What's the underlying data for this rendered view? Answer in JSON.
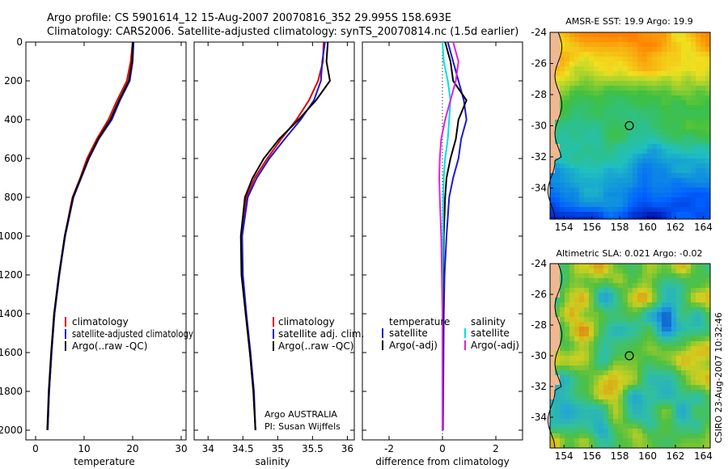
{
  "header": {
    "line1": "Argo profile: CS 5901614_12 15-Aug-2007 20070816_352 29.995S 158.693E",
    "line2": "Climatology: CARS2006. Satellite-adjusted climatology: synTS_20070814.nc (1.5d earlier)"
  },
  "credit": "CSIRO 23-Aug-2007 10:32:46",
  "colors": {
    "climatology": "#e00000",
    "satellite": "#1a1ad0",
    "argo": "#000000",
    "satellite_diff": "#00e0e0",
    "argo_diff": "#e020e0"
  },
  "chart_data": [
    {
      "type": "line",
      "xlabel": "temperature",
      "ylabel": "",
      "xlim": [
        -2,
        31
      ],
      "ylim": [
        2050,
        0
      ],
      "xticks": [
        "0",
        "10",
        "20",
        "30"
      ],
      "yticks": [
        "0",
        "200",
        "400",
        "600",
        "800",
        "1000",
        "1200",
        "1400",
        "1600",
        "1800",
        "2000"
      ],
      "legend": [
        "climatology",
        "satellite-adjusted climatology",
        "Argo(..raw -QC)"
      ],
      "series": [
        {
          "name": "climatology",
          "color": "red",
          "x": [
            20.0,
            19.6,
            18.8,
            16.8,
            15.0,
            12.6,
            10.6,
            9.2,
            7.6,
            6.0,
            4.9,
            3.9,
            3.3,
            2.8,
            2.5
          ],
          "y": [
            0,
            100,
            200,
            300,
            400,
            500,
            600,
            700,
            800,
            1000,
            1200,
            1400,
            1600,
            1800,
            2000
          ]
        },
        {
          "name": "satellite-adjusted climatology",
          "color": "blue",
          "x": [
            20.2,
            20.0,
            19.4,
            17.4,
            15.7,
            13.0,
            11.0,
            9.4,
            7.8,
            6.1,
            4.9,
            3.9,
            3.3,
            2.8,
            2.5
          ],
          "y": [
            0,
            100,
            200,
            300,
            400,
            500,
            600,
            700,
            800,
            1000,
            1200,
            1400,
            1600,
            1800,
            2000
          ]
        },
        {
          "name": "Argo(..raw -QC)",
          "color": "black",
          "x": [
            20.0,
            19.9,
            19.2,
            17.2,
            15.4,
            12.9,
            10.9,
            9.3,
            7.7,
            6.0,
            4.8,
            3.8,
            3.2,
            2.7,
            2.4
          ],
          "y": [
            0,
            100,
            200,
            300,
            400,
            500,
            600,
            700,
            800,
            1000,
            1200,
            1400,
            1600,
            1800,
            2000
          ]
        }
      ]
    },
    {
      "type": "line",
      "xlabel": "salinity",
      "xlim": [
        33.8,
        36.1
      ],
      "ylim": [
        2050,
        0
      ],
      "xticks": [
        "34",
        "34.5",
        "35",
        "35.5",
        "36"
      ],
      "legend": [
        "climatology",
        "satellite adj. clim.",
        "Argo(..raw -QC)"
      ],
      "annotation": [
        "Argo AUSTRALIA",
        "PI: Susan Wijffels"
      ],
      "series": [
        {
          "name": "climatology",
          "color": "red",
          "x": [
            35.66,
            35.65,
            35.58,
            35.45,
            35.27,
            35.05,
            34.85,
            34.67,
            34.55,
            34.48,
            34.49,
            34.54,
            34.6,
            34.65,
            34.68
          ],
          "y": [
            0,
            100,
            200,
            300,
            400,
            500,
            600,
            700,
            800,
            1000,
            1200,
            1400,
            1600,
            1800,
            2000
          ]
        },
        {
          "name": "satellite adj. clim.",
          "color": "blue",
          "x": [
            35.68,
            35.64,
            35.62,
            35.52,
            35.33,
            35.1,
            34.88,
            34.7,
            34.57,
            34.49,
            34.5,
            34.55,
            34.61,
            34.66,
            34.68
          ],
          "y": [
            0,
            100,
            200,
            300,
            400,
            500,
            600,
            700,
            800,
            1000,
            1200,
            1400,
            1600,
            1800,
            2000
          ]
        },
        {
          "name": "Argo(..raw -QC)",
          "color": "black",
          "x": [
            35.72,
            35.7,
            35.75,
            35.55,
            35.3,
            35.02,
            34.8,
            34.64,
            34.53,
            34.47,
            34.48,
            34.54,
            34.6,
            34.65,
            34.68
          ],
          "y": [
            0,
            100,
            200,
            300,
            400,
            500,
            600,
            700,
            800,
            1000,
            1200,
            1400,
            1600,
            1800,
            2000
          ]
        }
      ]
    },
    {
      "type": "line",
      "xlabel": "difference from climatology",
      "xlim": [
        -3,
        3
      ],
      "ylim": [
        2050,
        0
      ],
      "xticks": [
        "-2",
        "0",
        "2"
      ],
      "legend_temperature": {
        "title": "temperature",
        "items": [
          "satellite",
          "Argo(-adj)"
        ]
      },
      "legend_salinity": {
        "title": "salinity",
        "items": [
          "satellite",
          "Argo(-adj)"
        ]
      },
      "series": [
        {
          "name": "temperature satellite",
          "color": "blue",
          "x": [
            0.2,
            0.4,
            0.6,
            0.8,
            0.9,
            0.7,
            0.6,
            0.4,
            0.25,
            0.15,
            0.08,
            0.05,
            0.04,
            0.03,
            0.02
          ],
          "y": [
            0,
            100,
            200,
            300,
            400,
            500,
            600,
            700,
            800,
            1000,
            1200,
            1400,
            1600,
            1800,
            2000
          ]
        },
        {
          "name": "temperature Argo(-adj)",
          "color": "black",
          "x": [
            0.1,
            0.3,
            0.4,
            0.9,
            0.6,
            0.5,
            0.3,
            0.15,
            0.1,
            0.05,
            0.03,
            0.02,
            0.01,
            0.0,
            0.0
          ],
          "y": [
            0,
            100,
            200,
            300,
            400,
            500,
            600,
            700,
            800,
            1000,
            1200,
            1400,
            1600,
            1800,
            2000
          ]
        },
        {
          "name": "salinity satellite",
          "color": "cyan",
          "x": [
            0.0,
            0.05,
            0.2,
            0.3,
            0.25,
            0.2,
            0.1,
            0.05,
            0.03,
            0.02,
            0.01,
            0.0,
            0.0,
            0.0,
            0.0
          ],
          "y": [
            0,
            100,
            200,
            300,
            400,
            500,
            600,
            700,
            800,
            1000,
            1200,
            1400,
            1600,
            1800,
            2000
          ]
        },
        {
          "name": "salinity Argo(-adj)",
          "color": "magenta",
          "x": [
            0.4,
            0.6,
            0.5,
            0.3,
            0.1,
            -0.05,
            -0.1,
            -0.12,
            -0.1,
            -0.05,
            -0.02,
            0.0,
            0.0,
            0.0,
            0.0
          ],
          "y": [
            0,
            100,
            200,
            300,
            400,
            500,
            600,
            700,
            800,
            1000,
            1200,
            1400,
            1600,
            1800,
            2000
          ]
        }
      ]
    },
    {
      "type": "heatmap",
      "title": "AMSR-E SST: 19.9 Argo: 19.9",
      "xlim": [
        153,
        164.5
      ],
      "ylim": [
        -36,
        -24
      ],
      "xticks": [
        "154",
        "156",
        "158",
        "160",
        "162",
        "164"
      ],
      "yticks": [
        "-24",
        "-26",
        "-28",
        "-30",
        "-32",
        "-34"
      ],
      "marker": {
        "lon": 158.693,
        "lat": -29.995
      },
      "colormap": [
        "#0000a0",
        "#0060ff",
        "#20c0c0",
        "#40c040",
        "#f0e020",
        "#ff8000"
      ]
    },
    {
      "type": "heatmap",
      "title": "Altimetric SLA: 0.021 Argo: -0.02",
      "xlim": [
        153,
        164.5
      ],
      "ylim": [
        -36,
        -24
      ],
      "xticks": [
        "154",
        "156",
        "158",
        "160",
        "162",
        "164"
      ],
      "yticks": [
        "-24",
        "-26",
        "-28",
        "-30",
        "-32",
        "-34"
      ],
      "marker": {
        "lon": 158.693,
        "lat": -29.995
      },
      "colormap": [
        "#0030c0",
        "#20a0e0",
        "#30c0a0",
        "#50c040",
        "#d0d020",
        "#e08010",
        "#a03000"
      ]
    }
  ]
}
